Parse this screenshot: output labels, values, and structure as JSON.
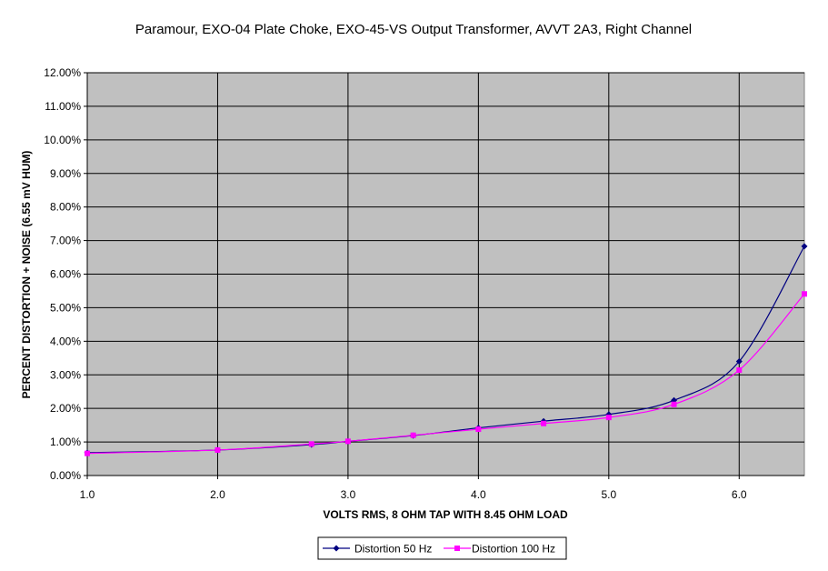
{
  "chart_data": {
    "type": "line",
    "title": "Paramour, EXO-04 Plate Choke, EXO-45-VS Output Transformer, AVVT 2A3, Right Channel",
    "xlabel": "VOLTS RMS, 8 OHM TAP WITH 8.45 OHM LOAD",
    "ylabel": "PERCENT DISTORTION + NOISE (6.55 mV HUM)",
    "xlim": [
      1.0,
      6.5
    ],
    "ylim": [
      0,
      0.12
    ],
    "x_ticks": [
      1.0,
      2.0,
      3.0,
      4.0,
      5.0,
      6.0
    ],
    "x_tick_labels": [
      "1.0",
      "2.0",
      "3.0",
      "4.0",
      "5.0",
      "6.0"
    ],
    "y_ticks": [
      0,
      0.01,
      0.02,
      0.03,
      0.04,
      0.05,
      0.06,
      0.07,
      0.08,
      0.09,
      0.1,
      0.11,
      0.12
    ],
    "y_tick_labels": [
      "0.00%",
      "1.00%",
      "2.00%",
      "3.00%",
      "4.00%",
      "5.00%",
      "6.00%",
      "7.00%",
      "8.00%",
      "9.00%",
      "10.00%",
      "11.00%",
      "12.00%"
    ],
    "grid": true,
    "plot_background": "#c0c0c0",
    "legend_position": "bottom",
    "series": [
      {
        "name": "Distortion 50 Hz",
        "color": "#000080",
        "marker": "diamond",
        "x": [
          1.0,
          2.0,
          2.72,
          3.0,
          3.5,
          4.0,
          4.5,
          5.0,
          5.5,
          6.0,
          6.5
        ],
        "y": [
          0.0068,
          0.0076,
          0.0092,
          0.0102,
          0.0119,
          0.0142,
          0.0162,
          0.0182,
          0.0224,
          0.034,
          0.0683
        ]
      },
      {
        "name": "Distortion 100 Hz",
        "color": "#ff00ff",
        "marker": "square",
        "x": [
          1.0,
          2.0,
          2.72,
          3.0,
          3.5,
          4.0,
          4.5,
          5.0,
          5.5,
          6.0,
          6.5
        ],
        "y": [
          0.0066,
          0.0076,
          0.0094,
          0.0102,
          0.012,
          0.0138,
          0.0155,
          0.0173,
          0.0212,
          0.0314,
          0.0541
        ]
      }
    ]
  }
}
